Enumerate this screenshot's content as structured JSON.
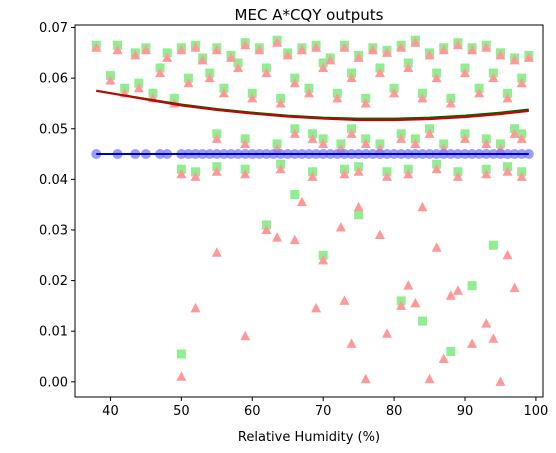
{
  "chart_data": {
    "type": "scatter",
    "title": "MEC A*CQY outputs",
    "xlabel": "Relative Humidity (%)",
    "ylabel": "",
    "xlim": [
      35,
      101
    ],
    "ylim": [
      -0.003,
      0.0705
    ],
    "xticks": [
      40,
      50,
      60,
      70,
      80,
      90,
      100
    ],
    "yticks": [
      0.0,
      0.01,
      0.02,
      0.03,
      0.04,
      0.05,
      0.06,
      0.07
    ],
    "grid": false,
    "legend": "none",
    "colors": {
      "squares": "#90ee90",
      "triangles": "#ff9999",
      "circles": "#7b7bff",
      "flat_line": "#0000cd",
      "fit_green": "#006400",
      "fit_red": "#cc0000"
    },
    "series": [
      {
        "kind": "square-points",
        "x": [
          38,
          41,
          43.5,
          45,
          48,
          50,
          52,
          53,
          55,
          57,
          59,
          61,
          63.5,
          65,
          67,
          69,
          71,
          73,
          75,
          77,
          79,
          81,
          83,
          85,
          87,
          89,
          91,
          93,
          95,
          97,
          99,
          40,
          44,
          47,
          51,
          54,
          58,
          62,
          66,
          70,
          74,
          78,
          82,
          86,
          90,
          94,
          98,
          42,
          46,
          49,
          56,
          60,
          64,
          68,
          72,
          76,
          80,
          84,
          88,
          92,
          96,
          55,
          59,
          63.5,
          66,
          68.5,
          70,
          72.5,
          74,
          76,
          78,
          81,
          83,
          85,
          87,
          90,
          93,
          95,
          97,
          98,
          50,
          52,
          55,
          59,
          64,
          68.5,
          73,
          75,
          79,
          82,
          86,
          89,
          93,
          96,
          98,
          50,
          62,
          66,
          70,
          75,
          81,
          84,
          88,
          91,
          94
        ],
        "y": [
          0.0665,
          0.0665,
          0.065,
          0.066,
          0.065,
          0.066,
          0.0665,
          0.064,
          0.066,
          0.0645,
          0.067,
          0.066,
          0.0675,
          0.065,
          0.066,
          0.0665,
          0.064,
          0.0665,
          0.0645,
          0.066,
          0.0655,
          0.0665,
          0.0675,
          0.065,
          0.066,
          0.067,
          0.066,
          0.0665,
          0.065,
          0.064,
          0.0645,
          0.0605,
          0.059,
          0.062,
          0.06,
          0.061,
          0.063,
          0.062,
          0.06,
          0.063,
          0.061,
          0.062,
          0.063,
          0.061,
          0.062,
          0.061,
          0.06,
          0.058,
          0.057,
          0.056,
          0.058,
          0.057,
          0.056,
          0.058,
          0.057,
          0.056,
          0.058,
          0.057,
          0.056,
          0.058,
          0.057,
          0.049,
          0.048,
          0.047,
          0.05,
          0.049,
          0.048,
          0.047,
          0.05,
          0.048,
          0.047,
          0.049,
          0.048,
          0.05,
          0.047,
          0.049,
          0.048,
          0.047,
          0.05,
          0.049,
          0.042,
          0.0415,
          0.0425,
          0.042,
          0.043,
          0.0415,
          0.042,
          0.0425,
          0.0415,
          0.042,
          0.043,
          0.0415,
          0.042,
          0.0425,
          0.0415,
          0.0055,
          0.031,
          0.037,
          0.025,
          0.033,
          0.016,
          0.012,
          0.006,
          0.019,
          0.027
        ]
      },
      {
        "kind": "triangle-points",
        "x": [
          38,
          41,
          43.5,
          45,
          48,
          50,
          52,
          53,
          55,
          57,
          59,
          61,
          63.5,
          65,
          67,
          69,
          71,
          73,
          75,
          77,
          79,
          81,
          83,
          85,
          87,
          89,
          91,
          93,
          95,
          97,
          99,
          40,
          44,
          47,
          51,
          54,
          58,
          62,
          66,
          70,
          74,
          78,
          82,
          86,
          90,
          94,
          98,
          42,
          46,
          49,
          56,
          60,
          64,
          68,
          72,
          76,
          80,
          84,
          88,
          92,
          96,
          55,
          59,
          63.5,
          66,
          68.5,
          70,
          72.5,
          74,
          76,
          78,
          81,
          83,
          85,
          87,
          90,
          93,
          95,
          97,
          98,
          50,
          52,
          55,
          59,
          64,
          68.5,
          73,
          75,
          79,
          82,
          86,
          89,
          93,
          96,
          98,
          50,
          52,
          55,
          59,
          62,
          63.5,
          66,
          67,
          69,
          70,
          72.5,
          73,
          74,
          75,
          76,
          78,
          79,
          81,
          82,
          83,
          84,
          85,
          86,
          87,
          88,
          89,
          91,
          93,
          94,
          95,
          96,
          97
        ],
        "y": [
          0.066,
          0.0655,
          0.0645,
          0.0655,
          0.064,
          0.0655,
          0.066,
          0.0635,
          0.0655,
          0.064,
          0.0665,
          0.0655,
          0.067,
          0.0645,
          0.0655,
          0.066,
          0.0635,
          0.066,
          0.064,
          0.0655,
          0.065,
          0.066,
          0.067,
          0.0645,
          0.0655,
          0.0665,
          0.0655,
          0.066,
          0.0645,
          0.0635,
          0.064,
          0.0595,
          0.058,
          0.061,
          0.059,
          0.06,
          0.062,
          0.061,
          0.059,
          0.062,
          0.06,
          0.061,
          0.062,
          0.06,
          0.061,
          0.06,
          0.059,
          0.057,
          0.056,
          0.055,
          0.057,
          0.056,
          0.055,
          0.057,
          0.056,
          0.055,
          0.057,
          0.056,
          0.055,
          0.057,
          0.056,
          0.048,
          0.047,
          0.046,
          0.049,
          0.048,
          0.047,
          0.046,
          0.049,
          0.047,
          0.046,
          0.048,
          0.047,
          0.049,
          0.046,
          0.048,
          0.047,
          0.046,
          0.049,
          0.048,
          0.041,
          0.0405,
          0.0415,
          0.041,
          0.042,
          0.0405,
          0.041,
          0.0415,
          0.0405,
          0.041,
          0.042,
          0.0405,
          0.041,
          0.0415,
          0.0405,
          0.001,
          0.0145,
          0.0255,
          0.009,
          0.03,
          0.0285,
          0.028,
          0.0355,
          0.0145,
          0.024,
          0.0305,
          0.016,
          0.0075,
          0.0345,
          0.0005,
          0.029,
          0.0095,
          0.015,
          0.019,
          0.0155,
          0.0345,
          0.0005,
          0.0265,
          0.0045,
          0.017,
          0.018,
          0.0075,
          0.0115,
          0.0085,
          0.0,
          0.025,
          0.0185
        ]
      },
      {
        "kind": "circle-points",
        "x": [
          38,
          41,
          43.5,
          45,
          47,
          48,
          50,
          51,
          52,
          53,
          54,
          55,
          56,
          57,
          58,
          59,
          60,
          61,
          62,
          63,
          64,
          65,
          66,
          67,
          68,
          69,
          70,
          71,
          72,
          73,
          74,
          75,
          76,
          77,
          78,
          79,
          80,
          81,
          82,
          83,
          84,
          85,
          86,
          87,
          88,
          89,
          90,
          91,
          92,
          93,
          94,
          95,
          96,
          97,
          98,
          99
        ],
        "y": [
          0.045,
          0.045,
          0.045,
          0.045,
          0.045,
          0.045,
          0.045,
          0.045,
          0.045,
          0.045,
          0.045,
          0.045,
          0.045,
          0.045,
          0.045,
          0.045,
          0.045,
          0.045,
          0.045,
          0.045,
          0.045,
          0.045,
          0.045,
          0.045,
          0.045,
          0.045,
          0.045,
          0.045,
          0.045,
          0.045,
          0.045,
          0.045,
          0.045,
          0.045,
          0.045,
          0.045,
          0.045,
          0.045,
          0.045,
          0.045,
          0.045,
          0.045,
          0.045,
          0.045,
          0.045,
          0.045,
          0.045,
          0.045,
          0.045,
          0.045,
          0.045,
          0.045,
          0.045,
          0.045,
          0.045,
          0.045
        ]
      },
      {
        "kind": "flat-line",
        "x": [
          38,
          99
        ],
        "y": [
          0.045,
          0.045
        ]
      },
      {
        "kind": "fit-curve-green",
        "x": [
          38,
          45,
          50,
          55,
          60,
          65,
          70,
          75,
          80,
          85,
          90,
          95,
          99
        ],
        "y": [
          0.0575,
          0.0559,
          0.0548,
          0.0539,
          0.0532,
          0.0526,
          0.0522,
          0.052,
          0.052,
          0.0522,
          0.0526,
          0.0532,
          0.0538
        ]
      },
      {
        "kind": "fit-curve-red",
        "x": [
          38,
          45,
          50,
          55,
          60,
          65,
          70,
          75,
          80,
          85,
          90,
          95,
          99
        ],
        "y": [
          0.0575,
          0.0558,
          0.0546,
          0.0537,
          0.053,
          0.0524,
          0.052,
          0.0517,
          0.0517,
          0.0519,
          0.0523,
          0.0529,
          0.0535
        ]
      }
    ]
  }
}
